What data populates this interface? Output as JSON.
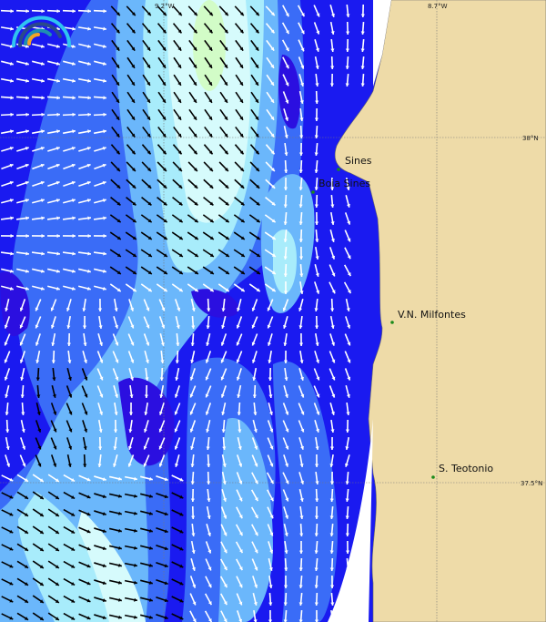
{
  "map": {
    "grid_labels": {
      "lon_left": "9.2°W",
      "lon_right": "8.7°W",
      "lat_top": "38°N",
      "lat_bottom": "37.5°N"
    },
    "places": [
      {
        "name": "Sines"
      },
      {
        "name": "Boia Sines"
      },
      {
        "name": "V.N. Milfontes"
      },
      {
        "name": "S. Teotonio"
      }
    ],
    "colors": {
      "land": "#eedba8",
      "deep_sea": "#1a1af0",
      "sea_dark": "#2b0fe0",
      "sea_mid": "#3a6cf7",
      "sea_light": "#6bb7fb",
      "sea_pale": "#a8ecfb",
      "sea_palest": "#d6fbfc",
      "sea_green": "#d2fcc7",
      "place_marker": "#1a8a1a"
    },
    "logo": "wave-rainbow-logo"
  }
}
